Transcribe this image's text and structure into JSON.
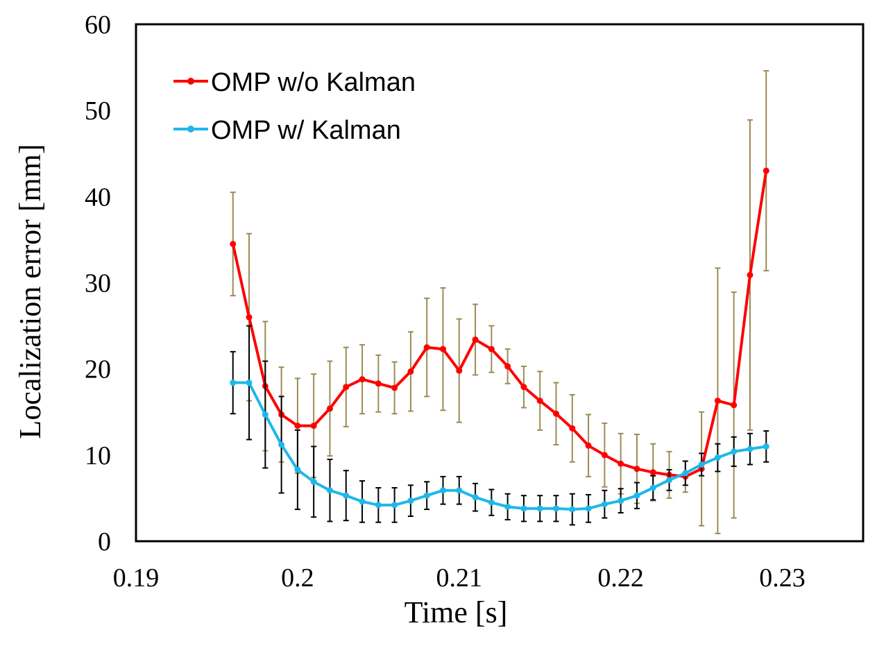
{
  "chart_data": {
    "type": "line",
    "title": "",
    "xlabel": "Time [s]",
    "ylabel": "Localization error [mm]",
    "xlim": [
      0.19,
      0.235
    ],
    "ylim": [
      0,
      60
    ],
    "xticks": [
      0.19,
      0.2,
      0.21,
      0.22,
      0.23
    ],
    "xtick_labels": [
      "0.19",
      "0.2",
      "0.21",
      "0.22",
      "0.23"
    ],
    "yticks": [
      0,
      10,
      20,
      30,
      40,
      50,
      60
    ],
    "ytick_labels": [
      "0",
      "10",
      "20",
      "30",
      "40",
      "50",
      "60"
    ],
    "grid": false,
    "legend_position": "top-left",
    "series": [
      {
        "name": "OMP w/o Kalman",
        "color": "#ff0000",
        "error_bar_color": "#9c8a55",
        "x": [
          0.196,
          0.197,
          0.198,
          0.199,
          0.2,
          0.201,
          0.202,
          0.203,
          0.204,
          0.205,
          0.206,
          0.207,
          0.208,
          0.209,
          0.21,
          0.211,
          0.212,
          0.213,
          0.214,
          0.215,
          0.216,
          0.217,
          0.218,
          0.219,
          0.22,
          0.221,
          0.222,
          0.223,
          0.224,
          0.225,
          0.226,
          0.227,
          0.228,
          0.229
        ],
        "values": [
          34.5,
          26.0,
          18.0,
          14.7,
          13.4,
          13.4,
          15.4,
          17.9,
          18.8,
          18.3,
          17.8,
          19.7,
          22.5,
          22.3,
          19.8,
          23.4,
          22.3,
          20.3,
          17.9,
          16.3,
          14.8,
          13.1,
          11.1,
          10.0,
          9.0,
          8.4,
          8.0,
          7.7,
          7.5,
          8.4,
          16.3,
          15.8,
          30.9,
          43.0
        ],
        "errors": [
          6.0,
          9.7,
          7.5,
          5.5,
          5.5,
          6.0,
          5.5,
          4.6,
          4.0,
          3.3,
          3.0,
          4.6,
          5.7,
          7.1,
          6.0,
          4.1,
          2.7,
          2.0,
          2.4,
          3.4,
          3.6,
          3.9,
          3.6,
          3.7,
          3.5,
          4.0,
          3.3,
          2.7,
          1.8,
          6.6,
          15.4,
          13.1,
          18.0,
          11.6
        ]
      },
      {
        "name": "OMP w/ Kalman",
        "color": "#1fb7ea",
        "error_bar_color": "#000000",
        "x": [
          0.196,
          0.197,
          0.198,
          0.199,
          0.2,
          0.201,
          0.202,
          0.203,
          0.204,
          0.205,
          0.206,
          0.207,
          0.208,
          0.209,
          0.21,
          0.211,
          0.212,
          0.213,
          0.214,
          0.215,
          0.216,
          0.217,
          0.218,
          0.219,
          0.22,
          0.221,
          0.222,
          0.223,
          0.224,
          0.225,
          0.226,
          0.227,
          0.228,
          0.229
        ],
        "values": [
          18.4,
          18.4,
          14.7,
          11.2,
          8.3,
          6.9,
          5.9,
          5.3,
          4.6,
          4.2,
          4.2,
          4.7,
          5.3,
          5.9,
          5.9,
          5.1,
          4.5,
          4.0,
          3.8,
          3.8,
          3.8,
          3.7,
          3.8,
          4.3,
          4.7,
          5.3,
          6.2,
          7.1,
          7.9,
          8.9,
          9.7,
          10.4,
          10.7,
          11.0
        ],
        "errors": [
          3.6,
          6.6,
          6.2,
          5.6,
          4.6,
          4.1,
          3.6,
          2.9,
          2.4,
          2.0,
          2.0,
          1.8,
          1.6,
          1.6,
          1.6,
          1.6,
          1.5,
          1.5,
          1.5,
          1.5,
          1.5,
          1.8,
          1.6,
          1.6,
          1.4,
          1.5,
          1.4,
          1.2,
          1.4,
          1.3,
          1.6,
          1.7,
          1.8,
          1.8
        ]
      }
    ]
  }
}
